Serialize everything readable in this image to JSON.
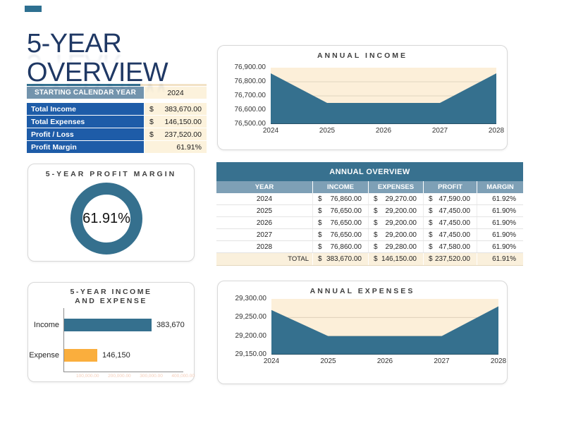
{
  "header": {
    "title_line1": "5-YEAR",
    "title_line2": "OVERVIEW"
  },
  "summary": {
    "header_label": "STARTING CALENDAR YEAR",
    "header_value": "2024",
    "rows": [
      {
        "label": "Total Income",
        "currency": "$",
        "value": "383,670.00"
      },
      {
        "label": "Total Expenses",
        "currency": "$",
        "value": "146,150.00"
      },
      {
        "label": "Profit / Loss",
        "currency": "$",
        "value": "237,520.00"
      },
      {
        "label": "Profit Margin",
        "currency": "",
        "value": "61.91%"
      }
    ]
  },
  "overview_table": {
    "title": "ANNUAL OVERVIEW",
    "columns": [
      "YEAR",
      "INCOME",
      "EXPENSES",
      "PROFIT",
      "MARGIN"
    ],
    "currency": "$",
    "rows": [
      {
        "year": "2024",
        "income": "76,860.00",
        "expenses": "29,270.00",
        "profit": "47,590.00",
        "margin": "61.92%"
      },
      {
        "year": "2025",
        "income": "76,650.00",
        "expenses": "29,200.00",
        "profit": "47,450.00",
        "margin": "61.90%"
      },
      {
        "year": "2026",
        "income": "76,650.00",
        "expenses": "29,200.00",
        "profit": "47,450.00",
        "margin": "61.90%"
      },
      {
        "year": "2027",
        "income": "76,650.00",
        "expenses": "29,200.00",
        "profit": "47,450.00",
        "margin": "61.90%"
      },
      {
        "year": "2028",
        "income": "76,860.00",
        "expenses": "29,280.00",
        "profit": "47,580.00",
        "margin": "61.90%"
      }
    ],
    "total_label": "TOTAL",
    "total": {
      "income": "383,670.00",
      "expenses": "146,150.00",
      "profit": "237,520.00",
      "margin": "61.91%"
    }
  },
  "colors": {
    "steel_blue": "#35708E",
    "navy_title": "#1F3864",
    "royal_blue_row": "#1E5CA8",
    "steel_header": "#7394AD",
    "beige_cell": "#FCF2DC",
    "plot_beige": "#FCEFD9",
    "orange_bar": "#FAAE3D",
    "overview_bar": "#38718F"
  },
  "chart_data": [
    {
      "id": "income",
      "type": "area",
      "title": "ANNUAL INCOME",
      "x": [
        "2024",
        "2025",
        "2026",
        "2027",
        "2028"
      ],
      "values": [
        76860,
        76650,
        76650,
        76650,
        76860
      ],
      "ylim": [
        76500,
        76900
      ],
      "yticks": [
        "76,900.00",
        "76,800.00",
        "76,700.00",
        "76,600.00",
        "76,500.00"
      ],
      "fill": "#35708E",
      "plot_bg": "#FCEFD9",
      "grid": true,
      "legend": "none",
      "xlabel": "",
      "ylabel": ""
    },
    {
      "id": "profit_margin_donut",
      "type": "pie",
      "title": "5-YEAR PROFIT MARGIN",
      "value": 61.91,
      "label": "61.91%",
      "ring_color": "#35708E"
    },
    {
      "id": "five_year_income_expense",
      "type": "bar",
      "title": "5-YEAR INCOME AND EXPENSE",
      "title_lines": [
        "5-YEAR INCOME",
        "AND EXPENSE"
      ],
      "categories": [
        "Income",
        "Expense"
      ],
      "values": [
        383670,
        146150
      ],
      "value_labels": [
        "383,670",
        "146,150"
      ],
      "colors": [
        "#35708E",
        "#FAAE3D"
      ],
      "faint_axis_labels": [
        "100,000.00",
        "200,000.00",
        "300,000.00",
        "400,000.00"
      ],
      "legend": "none"
    },
    {
      "id": "expenses",
      "type": "area",
      "title": "ANNUAL EXPENSES",
      "x": [
        "2024",
        "2025",
        "2026",
        "2027",
        "2028"
      ],
      "values": [
        29270,
        29200,
        29200,
        29200,
        29280
      ],
      "ylim": [
        29150,
        29300
      ],
      "yticks": [
        "29,300.00",
        "29,250.00",
        "29,200.00",
        "29,150.00"
      ],
      "fill": "#35708E",
      "plot_bg": "#FCEFD9",
      "grid": true,
      "legend": "none",
      "xlabel": "",
      "ylabel": ""
    }
  ]
}
